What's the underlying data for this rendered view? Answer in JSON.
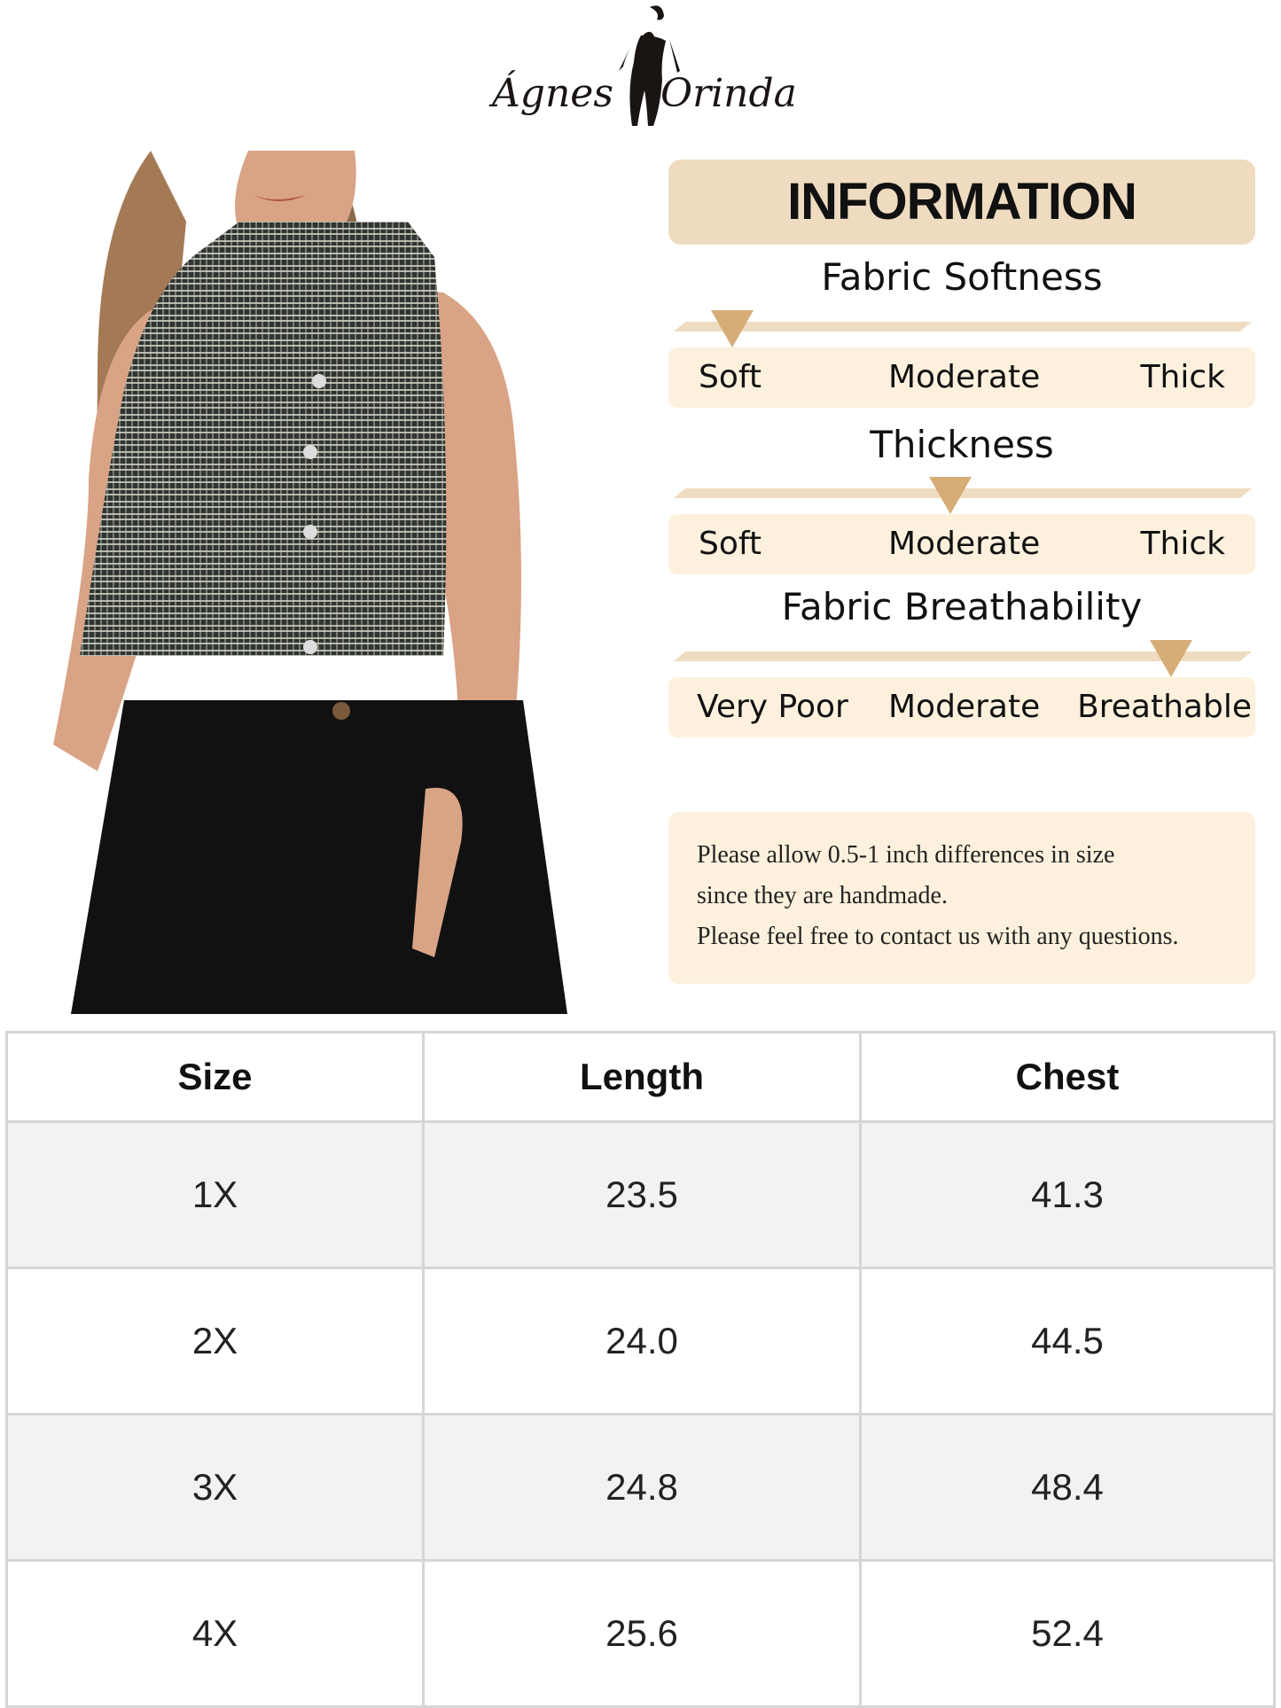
{
  "brand": {
    "logo_text_left": "Ágnes",
    "logo_text_right": "Orinda"
  },
  "info": {
    "title": "INFORMATION",
    "accent_color": "#d6ad77",
    "scales": [
      {
        "title": "Fabric Softness",
        "labels": [
          "Soft",
          "Moderate",
          "Thick"
        ],
        "selected": "Soft",
        "level": 0.05
      },
      {
        "title": "Thickness",
        "labels": [
          "Soft",
          "Moderate",
          "Thick"
        ],
        "selected": "Moderate",
        "level": 0.5
      },
      {
        "title": "Fabric Breathability",
        "labels": [
          "Very Poor",
          "Moderate",
          "Breathable"
        ],
        "selected": "Breathable",
        "level": 0.87
      }
    ],
    "note": [
      "Please allow 0.5-1 inch differences in size",
      "since they are handmade.",
      "Please feel free to contact us with any questions."
    ]
  },
  "size_table": {
    "headers": [
      "Size",
      "Length",
      "Chest"
    ],
    "rows": [
      [
        "1X",
        "23.5",
        "41.3"
      ],
      [
        "2X",
        "24.0",
        "44.5"
      ],
      [
        "3X",
        "24.8",
        "48.4"
      ],
      [
        "4X",
        "25.6",
        "52.4"
      ]
    ]
  }
}
